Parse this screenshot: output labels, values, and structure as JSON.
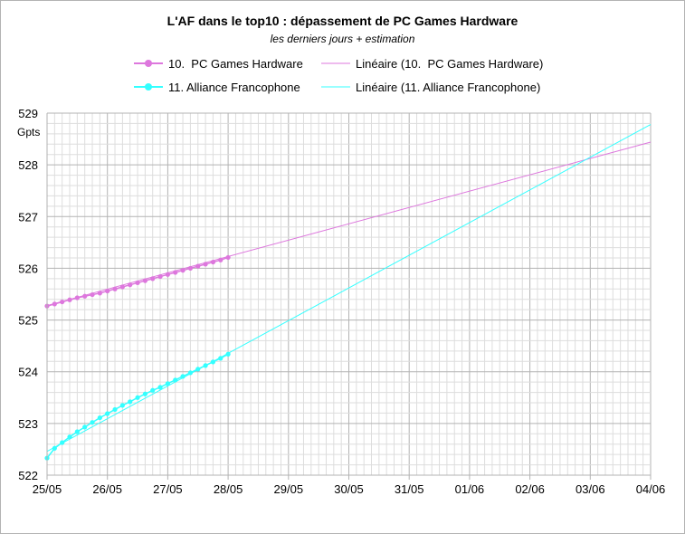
{
  "chart_data": {
    "type": "line",
    "title": "L'AF dans le top10 : dépassement de PC Games Hardware",
    "subtitle": "les derniers jours + estimation",
    "ylabel": "Gpts",
    "xlabel": "",
    "ylim": [
      522,
      529
    ],
    "yticks": [
      "522",
      "523",
      "524",
      "525",
      "526",
      "527",
      "528",
      "529"
    ],
    "xlim": [
      0,
      10
    ],
    "xticks": [
      "25/05",
      "26/05",
      "27/05",
      "28/05",
      "29/05",
      "30/05",
      "31/05",
      "01/06",
      "02/06",
      "03/06",
      "04/06"
    ],
    "grid": true,
    "legend_position": "top",
    "series": [
      {
        "name": "10.  PC Games Hardware",
        "color": "#dd77dd",
        "marker": "circle",
        "x": [
          0,
          0.125,
          0.25,
          0.375,
          0.5,
          0.625,
          0.75,
          0.875,
          1,
          1.125,
          1.25,
          1.375,
          1.5,
          1.625,
          1.75,
          1.875,
          2,
          2.125,
          2.25,
          2.375,
          2.5,
          2.625,
          2.75,
          2.875,
          3
        ],
        "y": [
          525.27,
          525.31,
          525.35,
          525.39,
          525.43,
          525.46,
          525.49,
          525.52,
          525.56,
          525.6,
          525.64,
          525.68,
          525.72,
          525.76,
          525.8,
          525.84,
          525.88,
          525.92,
          525.96,
          526.0,
          526.04,
          526.08,
          526.12,
          526.16,
          526.21
        ]
      },
      {
        "name": "11. Alliance Francophone",
        "color": "#33ffff",
        "marker": "circle",
        "x": [
          0,
          0.125,
          0.25,
          0.375,
          0.5,
          0.625,
          0.75,
          0.875,
          1,
          1.125,
          1.25,
          1.375,
          1.5,
          1.625,
          1.75,
          1.875,
          2,
          2.125,
          2.25,
          2.375,
          2.5,
          2.625,
          2.75,
          2.875,
          3
        ],
        "y": [
          522.33,
          522.52,
          522.63,
          522.74,
          522.84,
          522.93,
          523.02,
          523.11,
          523.19,
          523.27,
          523.35,
          523.42,
          523.5,
          523.57,
          523.64,
          523.7,
          523.77,
          523.84,
          523.91,
          523.98,
          524.05,
          524.12,
          524.19,
          524.26,
          524.34
        ]
      }
    ],
    "trendlines": [
      {
        "name": "Linéaire (10.  PC Games Hardware)",
        "color": "#dd77dd",
        "x": [
          0,
          10
        ],
        "y": [
          525.28,
          528.44
        ]
      },
      {
        "name": "Linéaire (11. Alliance Francophone)",
        "color": "#33ffff",
        "x": [
          0,
          10
        ],
        "y": [
          522.46,
          528.78
        ]
      }
    ]
  }
}
